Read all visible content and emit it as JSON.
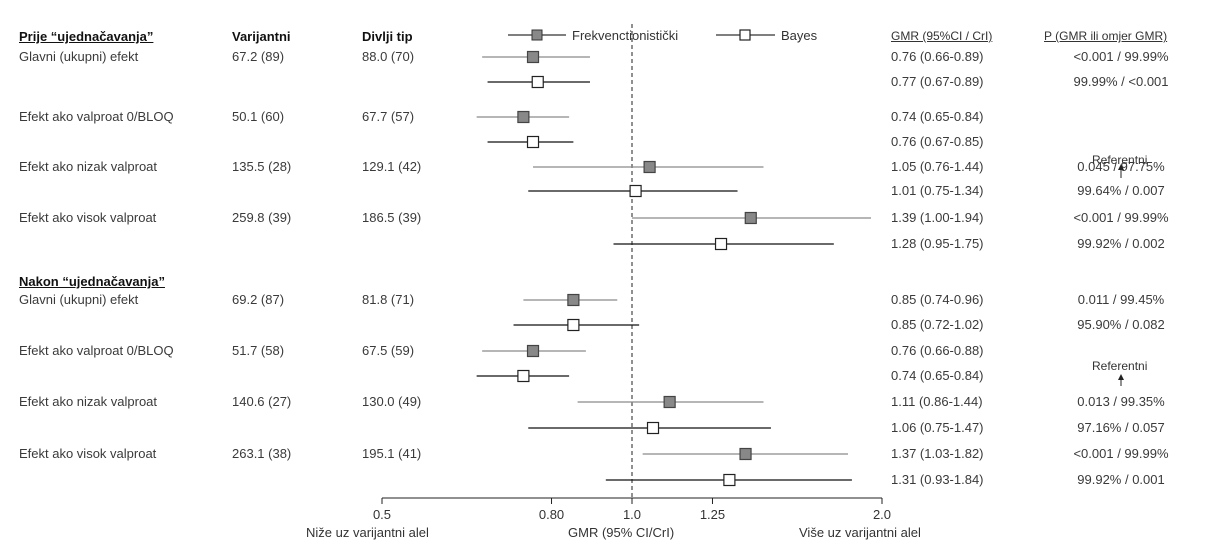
{
  "header": {
    "title_before": "Prije “ujednačavanja”",
    "col_variant": "Varijantni",
    "col_wild": "Divlji tip",
    "col_gmr": "GMR (95%CI / CrI)",
    "col_p": "P (GMR ili omjer GMR)"
  },
  "legend": {
    "frequentist": "Frekvenctionistički",
    "bayes": "Bayes"
  },
  "section_after": "Nakon “ujednačavanja”",
  "reference_label": "Referentni",
  "rows": [
    {
      "label": "Glavni (ukupni) efekt",
      "variant": "67.2 (89)",
      "wild": "88.0 (70)",
      "gmr": "0.76 (0.66-0.89)",
      "p": "<0.001 /  99.99%",
      "type": "freq",
      "est": 0.76,
      "lo": 0.66,
      "hi": 0.89
    },
    {
      "label": "",
      "variant": "",
      "wild": "",
      "gmr": "0.77 (0.67-0.89)",
      "p": "99.99% / <0.001",
      "type": "bayes",
      "est": 0.77,
      "lo": 0.67,
      "hi": 0.89
    },
    {
      "label": "Efekt ako valproat 0/BLOQ",
      "variant": "50.1 (60)",
      "wild": "67.7 (57)",
      "gmr": "0.74 (0.65-0.84)",
      "p": "",
      "type": "freq",
      "est": 0.74,
      "lo": 0.65,
      "hi": 0.84
    },
    {
      "label": "",
      "variant": "",
      "wild": "",
      "gmr": "0.76 (0.67-0.85)",
      "p": "",
      "type": "bayes",
      "est": 0.76,
      "lo": 0.67,
      "hi": 0.85
    },
    {
      "label": "Efekt ako nizak valproat",
      "variant": "135.5 (28)",
      "wild": "129.1 (42)",
      "gmr": "1.05 (0.76-1.44)",
      "p": "0.045 / 97.75%",
      "type": "freq",
      "est": 1.05,
      "lo": 0.76,
      "hi": 1.44
    },
    {
      "label": "",
      "variant": "",
      "wild": "",
      "gmr": "1.01 (0.75-1.34)",
      "p": "99.64% / 0.007",
      "type": "bayes",
      "est": 1.01,
      "lo": 0.75,
      "hi": 1.34
    },
    {
      "label": "Efekt ako visok valproat",
      "variant": "259.8 (39)",
      "wild": "186.5 (39)",
      "gmr": "1.39 (1.00-1.94)",
      "p": "<0.001 / 99.99%",
      "type": "freq",
      "est": 1.39,
      "lo": 1.0,
      "hi": 1.94
    },
    {
      "label": "",
      "variant": "",
      "wild": "",
      "gmr": "1.28 (0.95-1.75)",
      "p": "99.92% / 0.002",
      "type": "bayes",
      "est": 1.28,
      "lo": 0.95,
      "hi": 1.75
    },
    {
      "label": "Glavni (ukupni) efekt",
      "variant": "69.2 (87)",
      "wild": "81.8 (71)",
      "gmr": "0.85 (0.74-0.96)",
      "p": "0.011 / 99.45%",
      "type": "freq",
      "est": 0.85,
      "lo": 0.74,
      "hi": 0.96
    },
    {
      "label": "",
      "variant": "",
      "wild": "",
      "gmr": "0.85 (0.72-1.02)",
      "p": "95.90% / 0.082",
      "type": "bayes",
      "est": 0.85,
      "lo": 0.72,
      "hi": 1.02
    },
    {
      "label": "Efekt ako valproat 0/BLOQ",
      "variant": "51.7 (58)",
      "wild": "67.5 (59)",
      "gmr": "0.76 (0.66-0.88)",
      "p": "",
      "type": "freq",
      "est": 0.76,
      "lo": 0.66,
      "hi": 0.88
    },
    {
      "label": "",
      "variant": "",
      "wild": "",
      "gmr": "0.74 (0.65-0.84)",
      "p": "",
      "type": "bayes",
      "est": 0.74,
      "lo": 0.65,
      "hi": 0.84
    },
    {
      "label": "Efekt ako nizak valproat",
      "variant": "140.6 (27)",
      "wild": "130.0 (49)",
      "gmr": "1.11 (0.86-1.44)",
      "p": "0.013 / 99.35%",
      "type": "freq",
      "est": 1.11,
      "lo": 0.86,
      "hi": 1.44
    },
    {
      "label": "",
      "variant": "",
      "wild": "",
      "gmr": "1.06 (0.75-1.47)",
      "p": "97.16% / 0.057",
      "type": "bayes",
      "est": 1.06,
      "lo": 0.75,
      "hi": 1.47
    },
    {
      "label": "Efekt ako visok valproat",
      "variant": "263.1 (38)",
      "wild": "195.1 (41)",
      "gmr": "1.37 (1.03-1.82)",
      "p": "<0.001 / 99.99%",
      "type": "freq",
      "est": 1.37,
      "lo": 1.03,
      "hi": 1.82
    },
    {
      "label": "",
      "variant": "",
      "wild": "",
      "gmr": "1.31 (0.93-1.84)",
      "p": "99.92% / 0.001",
      "type": "bayes",
      "est": 1.31,
      "lo": 0.93,
      "hi": 1.84
    }
  ],
  "axis": {
    "ticks": [
      0.5,
      0.8,
      1.0,
      1.25,
      2.0
    ],
    "tick_labels": [
      "0.5",
      "0.80",
      "1.0",
      "1.25",
      "2.0"
    ],
    "label_left": "Niže uz varijantni alel",
    "label_center": "GMR (95% CI/CrI)",
    "label_right": "Više uz varijantni alel"
  },
  "chart_data": {
    "type": "scatter",
    "scale": "log",
    "xlim": [
      0.5,
      2.0
    ],
    "reference_line": 1.0,
    "series": [
      {
        "name": "Frekvenctionistički",
        "marker": "filled-square",
        "color": "#888888",
        "points": [
          {
            "est": 0.76,
            "lo": 0.66,
            "hi": 0.89
          },
          {
            "est": 0.74,
            "lo": 0.65,
            "hi": 0.84
          },
          {
            "est": 1.05,
            "lo": 0.76,
            "hi": 1.44
          },
          {
            "est": 1.39,
            "lo": 1.0,
            "hi": 1.94
          },
          {
            "est": 0.85,
            "lo": 0.74,
            "hi": 0.96
          },
          {
            "est": 0.76,
            "lo": 0.66,
            "hi": 0.88
          },
          {
            "est": 1.11,
            "lo": 0.86,
            "hi": 1.44
          },
          {
            "est": 1.37,
            "lo": 1.03,
            "hi": 1.82
          }
        ]
      },
      {
        "name": "Bayes",
        "marker": "open-square",
        "color": "#000000",
        "points": [
          {
            "est": 0.77,
            "lo": 0.67,
            "hi": 0.89
          },
          {
            "est": 0.76,
            "lo": 0.67,
            "hi": 0.85
          },
          {
            "est": 1.01,
            "lo": 0.75,
            "hi": 1.34
          },
          {
            "est": 1.28,
            "lo": 0.95,
            "hi": 1.75
          },
          {
            "est": 0.85,
            "lo": 0.72,
            "hi": 1.02
          },
          {
            "est": 0.74,
            "lo": 0.65,
            "hi": 0.84
          },
          {
            "est": 1.06,
            "lo": 0.75,
            "hi": 1.47
          },
          {
            "est": 1.31,
            "lo": 0.93,
            "hi": 1.84
          }
        ]
      }
    ]
  }
}
